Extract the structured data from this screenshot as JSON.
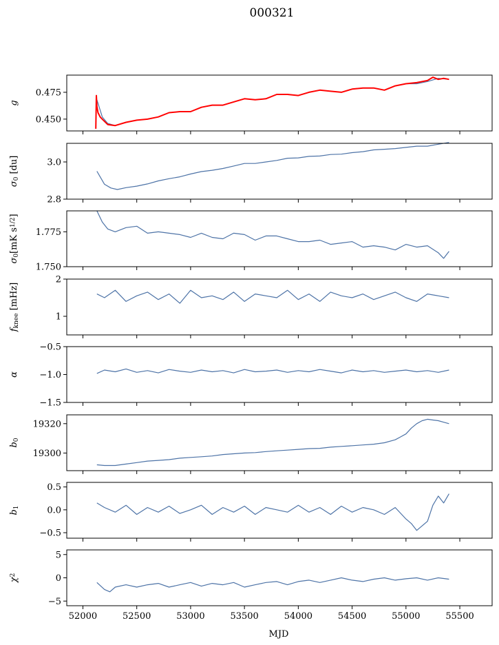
{
  "title": "000321",
  "xlabel": "MJD",
  "colors": {
    "series": "#4c72a6",
    "overlay": "#ff0000"
  },
  "chart_data": [
    {
      "type": "line",
      "ylabel": "g",
      "xlim": [
        51850,
        55800
      ],
      "ylim": [
        0.439,
        0.491
      ],
      "yticks": [
        0.45,
        0.475
      ],
      "ytick_labels": [
        "0.450",
        "0.475"
      ],
      "series": [
        {
          "x": [
            52130,
            52180,
            52230,
            52300,
            52400,
            52500,
            52600,
            52700,
            52800,
            52900,
            53000,
            53100,
            53200,
            53300,
            53400,
            53500,
            53600,
            53700,
            53800,
            53900,
            54000,
            54100,
            54200,
            54300,
            54400,
            54500,
            54600,
            54700,
            54800,
            54900,
            55000,
            55100,
            55200,
            55300,
            55400
          ],
          "y": [
            0.468,
            0.452,
            0.446,
            0.444,
            0.447,
            0.449,
            0.45,
            0.452,
            0.456,
            0.457,
            0.457,
            0.461,
            0.463,
            0.463,
            0.466,
            0.469,
            0.468,
            0.469,
            0.473,
            0.473,
            0.472,
            0.475,
            0.477,
            0.476,
            0.475,
            0.478,
            0.479,
            0.479,
            0.477,
            0.481,
            0.483,
            0.483,
            0.485,
            0.488,
            0.487
          ]
        },
        {
          "x": [
            52120,
            52125,
            52130,
            52140,
            52160,
            52180,
            52230,
            52300,
            52400,
            52500,
            52600,
            52700,
            52800,
            52900,
            53000,
            53100,
            53200,
            53300,
            53400,
            53500,
            53600,
            53700,
            53800,
            53900,
            54000,
            54100,
            54200,
            54300,
            54400,
            54500,
            54600,
            54700,
            54800,
            54900,
            55000,
            55100,
            55200,
            55250,
            55300,
            55350,
            55400
          ],
          "y": [
            0.441,
            0.472,
            0.462,
            0.456,
            0.452,
            0.45,
            0.445,
            0.444,
            0.447,
            0.449,
            0.45,
            0.452,
            0.456,
            0.457,
            0.457,
            0.461,
            0.463,
            0.463,
            0.466,
            0.469,
            0.468,
            0.469,
            0.473,
            0.473,
            0.472,
            0.475,
            0.477,
            0.476,
            0.475,
            0.478,
            0.479,
            0.479,
            0.477,
            0.481,
            0.483,
            0.484,
            0.486,
            0.489,
            0.487,
            0.488,
            0.487
          ]
        }
      ]
    },
    {
      "type": "line",
      "ylabel": "σ0 [du]",
      "xlim": [
        51850,
        55800
      ],
      "ylim": [
        2.8,
        3.1
      ],
      "yticks": [
        2.8,
        3.0
      ],
      "ytick_labels": [
        "2.8",
        "3.0"
      ],
      "series": [
        {
          "x": [
            52130,
            52200,
            52260,
            52320,
            52400,
            52500,
            52600,
            52700,
            52800,
            52900,
            53000,
            53100,
            53200,
            53300,
            53400,
            53500,
            53600,
            53700,
            53800,
            53900,
            54000,
            54100,
            54200,
            54300,
            54400,
            54500,
            54600,
            54700,
            54800,
            54900,
            55000,
            55100,
            55200,
            55300,
            55400
          ],
          "y": [
            2.95,
            2.88,
            2.86,
            2.852,
            2.862,
            2.87,
            2.882,
            2.898,
            2.91,
            2.92,
            2.935,
            2.948,
            2.955,
            2.965,
            2.978,
            2.992,
            2.992,
            3.0,
            3.008,
            3.02,
            3.022,
            3.03,
            3.032,
            3.04,
            3.042,
            3.05,
            3.055,
            3.065,
            3.068,
            3.072,
            3.078,
            3.085,
            3.085,
            3.095,
            3.105
          ]
        }
      ]
    },
    {
      "type": "line",
      "ylabel": "σ0[mK s1/2]",
      "xlim": [
        51850,
        55800
      ],
      "ylim": [
        1.75,
        1.79
      ],
      "yticks": [
        1.75,
        1.775
      ],
      "ytick_labels": [
        "1.750",
        "1.775"
      ],
      "series": [
        {
          "x": [
            52130,
            52180,
            52230,
            52300,
            52400,
            52500,
            52600,
            52700,
            52800,
            52900,
            53000,
            53100,
            53200,
            53300,
            53400,
            53500,
            53600,
            53700,
            53800,
            53900,
            54000,
            54100,
            54200,
            54300,
            54400,
            54500,
            54600,
            54700,
            54800,
            54900,
            55000,
            55100,
            55200,
            55300,
            55350,
            55400
          ],
          "y": [
            1.79,
            1.782,
            1.777,
            1.775,
            1.778,
            1.779,
            1.774,
            1.775,
            1.774,
            1.773,
            1.771,
            1.774,
            1.771,
            1.77,
            1.774,
            1.773,
            1.769,
            1.772,
            1.772,
            1.77,
            1.768,
            1.768,
            1.769,
            1.766,
            1.767,
            1.768,
            1.764,
            1.765,
            1.764,
            1.762,
            1.766,
            1.764,
            1.765,
            1.76,
            1.756,
            1.761
          ]
        }
      ]
    },
    {
      "type": "line",
      "ylabel": "fknee [mHz]",
      "xlim": [
        51850,
        55800
      ],
      "ylim": [
        0.5,
        2.0
      ],
      "yticks": [
        1,
        2
      ],
      "ytick_labels": [
        "1",
        "2"
      ],
      "series": [
        {
          "x": [
            52130,
            52200,
            52300,
            52400,
            52500,
            52600,
            52700,
            52800,
            52900,
            53000,
            53100,
            53200,
            53300,
            53400,
            53500,
            53600,
            53700,
            53800,
            53900,
            54000,
            54100,
            54200,
            54300,
            54400,
            54500,
            54600,
            54700,
            54800,
            54900,
            55000,
            55100,
            55200,
            55300,
            55400
          ],
          "y": [
            1.6,
            1.5,
            1.7,
            1.4,
            1.55,
            1.65,
            1.45,
            1.6,
            1.35,
            1.7,
            1.5,
            1.55,
            1.45,
            1.65,
            1.4,
            1.6,
            1.55,
            1.5,
            1.7,
            1.45,
            1.6,
            1.4,
            1.65,
            1.55,
            1.5,
            1.6,
            1.45,
            1.55,
            1.65,
            1.5,
            1.4,
            1.6,
            1.55,
            1.5
          ]
        }
      ]
    },
    {
      "type": "line",
      "ylabel": "α",
      "xlim": [
        51850,
        55800
      ],
      "ylim": [
        -1.5,
        -0.5
      ],
      "yticks": [
        -1.5,
        -1.0,
        -0.5
      ],
      "ytick_labels": [
        "−1.5",
        "−1.0",
        "−0.5"
      ],
      "series": [
        {
          "x": [
            52130,
            52200,
            52300,
            52400,
            52500,
            52600,
            52700,
            52800,
            52900,
            53000,
            53100,
            53200,
            53300,
            53400,
            53500,
            53600,
            53700,
            53800,
            53900,
            54000,
            54100,
            54200,
            54300,
            54400,
            54500,
            54600,
            54700,
            54800,
            54900,
            55000,
            55100,
            55200,
            55300,
            55400
          ],
          "y": [
            -0.98,
            -0.92,
            -0.95,
            -0.9,
            -0.96,
            -0.93,
            -0.97,
            -0.91,
            -0.94,
            -0.96,
            -0.92,
            -0.95,
            -0.93,
            -0.97,
            -0.91,
            -0.95,
            -0.94,
            -0.92,
            -0.96,
            -0.93,
            -0.95,
            -0.91,
            -0.94,
            -0.97,
            -0.92,
            -0.95,
            -0.93,
            -0.96,
            -0.94,
            -0.92,
            -0.95,
            -0.93,
            -0.96,
            -0.92
          ]
        }
      ]
    },
    {
      "type": "line",
      "ylabel": "b0",
      "xlim": [
        51850,
        55800
      ],
      "ylim": [
        19288,
        19326
      ],
      "yticks": [
        19300,
        19320
      ],
      "ytick_labels": [
        "19300",
        "19320"
      ],
      "series": [
        {
          "x": [
            52130,
            52200,
            52300,
            52400,
            52500,
            52600,
            52700,
            52800,
            52900,
            53000,
            53100,
            53200,
            53300,
            53400,
            53500,
            53600,
            53700,
            53800,
            53900,
            54000,
            54100,
            54200,
            54300,
            54400,
            54500,
            54600,
            54700,
            54800,
            54900,
            54950,
            55000,
            55050,
            55100,
            55150,
            55200,
            55250,
            55300,
            55350,
            55400
          ],
          "y": [
            19292,
            19291.5,
            19291.5,
            19292.5,
            19293.5,
            19294.5,
            19295,
            19295.5,
            19296.5,
            19297,
            19297.5,
            19298,
            19299,
            19299.5,
            19300,
            19300.3,
            19301,
            19301.5,
            19302,
            19302.5,
            19303,
            19303.2,
            19304,
            19304.5,
            19305,
            19305.5,
            19306,
            19307,
            19309,
            19311,
            19313,
            19317,
            19320,
            19322,
            19323,
            19322.5,
            19322,
            19321,
            19320
          ]
        }
      ]
    },
    {
      "type": "line",
      "ylabel": "b1",
      "xlim": [
        51850,
        55800
      ],
      "ylim": [
        -0.62,
        0.6
      ],
      "yticks": [
        -0.5,
        0.0,
        0.5
      ],
      "ytick_labels": [
        "−0.5",
        "0.0",
        "0.5"
      ],
      "series": [
        {
          "x": [
            52130,
            52200,
            52300,
            52400,
            52500,
            52600,
            52700,
            52800,
            52900,
            53000,
            53100,
            53200,
            53300,
            53400,
            53500,
            53600,
            53700,
            53800,
            53900,
            54000,
            54100,
            54200,
            54300,
            54400,
            54500,
            54600,
            54700,
            54800,
            54900,
            55000,
            55050,
            55100,
            55150,
            55200,
            55250,
            55300,
            55350,
            55400
          ],
          "y": [
            0.15,
            0.05,
            -0.05,
            0.1,
            -0.1,
            0.05,
            -0.05,
            0.08,
            -0.08,
            0.0,
            0.1,
            -0.1,
            0.05,
            -0.05,
            0.08,
            -0.1,
            0.05,
            0.0,
            -0.05,
            0.1,
            -0.05,
            0.05,
            -0.1,
            0.08,
            -0.05,
            0.05,
            0.0,
            -0.1,
            0.05,
            -0.2,
            -0.3,
            -0.45,
            -0.35,
            -0.25,
            0.1,
            0.3,
            0.15,
            0.35
          ]
        }
      ]
    },
    {
      "type": "line",
      "ylabel": "χ2",
      "xlim": [
        51850,
        55800
      ],
      "ylim": [
        -6,
        6
      ],
      "yticks": [
        -5,
        0,
        5
      ],
      "ytick_labels": [
        "−5",
        "0",
        "5"
      ],
      "series": [
        {
          "x": [
            52130,
            52200,
            52250,
            52300,
            52400,
            52500,
            52600,
            52700,
            52800,
            52900,
            53000,
            53100,
            53200,
            53300,
            53400,
            53500,
            53600,
            53700,
            53800,
            53900,
            54000,
            54100,
            54200,
            54300,
            54400,
            54500,
            54600,
            54700,
            54800,
            54900,
            55000,
            55100,
            55200,
            55300,
            55400
          ],
          "y": [
            -1.0,
            -2.5,
            -3.0,
            -2.0,
            -1.5,
            -2.0,
            -1.5,
            -1.2,
            -2.0,
            -1.5,
            -1.0,
            -1.8,
            -1.2,
            -1.5,
            -1.0,
            -2.0,
            -1.5,
            -1.0,
            -0.8,
            -1.5,
            -0.8,
            -0.5,
            -1.0,
            -0.5,
            0.0,
            -0.5,
            -0.8,
            -0.3,
            0.0,
            -0.5,
            -0.2,
            0.0,
            -0.5,
            0.0,
            -0.3
          ]
        }
      ]
    }
  ],
  "xticks": [
    52000,
    52500,
    53000,
    53500,
    54000,
    54500,
    55000,
    55500
  ],
  "xtick_labels": [
    "52000",
    "52500",
    "53000",
    "53500",
    "54000",
    "54500",
    "55000",
    "55500"
  ]
}
